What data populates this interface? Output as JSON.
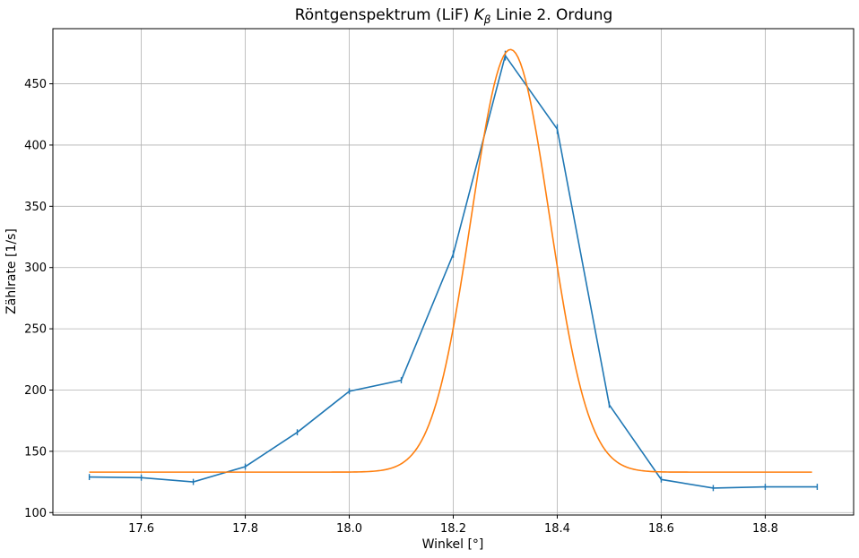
{
  "chart_data": {
    "type": "line",
    "title": "Röntgenspektrum (LiF) ",
    "title_symbol": "K",
    "title_subscript": "β",
    "title_suffix": " Linie 2. Ordung",
    "xlabel": "Winkel [°]",
    "ylabel": "Zählrate [1/s]",
    "xlim": [
      17.43,
      18.97
    ],
    "ylim": [
      98,
      495
    ],
    "x_ticks": [
      17.6,
      17.8,
      18.0,
      18.2,
      18.4,
      18.6,
      18.8
    ],
    "x_tick_labels": [
      "17.6",
      "17.8",
      "18.0",
      "18.2",
      "18.4",
      "18.6",
      "18.8"
    ],
    "y_ticks": [
      100,
      150,
      200,
      250,
      300,
      350,
      400,
      450
    ],
    "y_tick_labels": [
      "100",
      "150",
      "200",
      "250",
      "300",
      "350",
      "400",
      "450"
    ],
    "grid": true,
    "series": [
      {
        "kind": "data-with-errorbars",
        "color": "#1f77b4",
        "x": [
          17.5,
          17.6,
          17.7,
          17.8,
          17.9,
          18.0,
          18.1,
          18.2,
          18.3,
          18.4,
          18.5,
          18.6,
          18.7,
          18.8,
          18.9
        ],
        "y": [
          129,
          128.5,
          125,
          137.5,
          165.5,
          199,
          208,
          311,
          473,
          413,
          188,
          127,
          120,
          121,
          121
        ],
        "yerr": [
          2.5,
          2.5,
          2.5,
          2.5,
          2.5,
          2.5,
          2.5,
          3,
          4,
          4,
          2.5,
          2.5,
          2.5,
          2.5,
          2.5
        ]
      },
      {
        "kind": "gaussian-fit",
        "color": "#ff7f0e",
        "offset": 133,
        "amplitude": 345,
        "center": 18.31,
        "sigma": 0.075,
        "x_range": [
          17.5,
          18.89
        ]
      }
    ]
  }
}
